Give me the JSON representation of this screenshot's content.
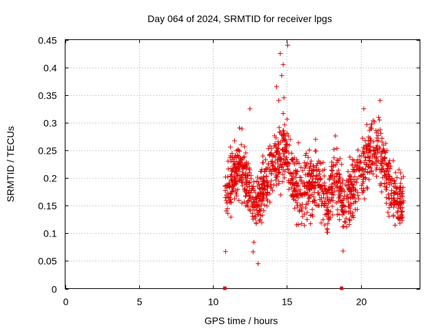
{
  "chart_data": {
    "type": "scatter",
    "title": "Day 064 of 2024, SRMTID for receiver lpgs",
    "xlabel": "GPS time / hours",
    "ylabel": "SRMTID / TECUs",
    "xlim": [
      0,
      24
    ],
    "ylim": [
      0,
      0.45
    ],
    "x_ticks": [
      0,
      5,
      10,
      15,
      20
    ],
    "y_ticks": [
      0,
      0.05,
      0.1,
      0.15,
      0.2,
      0.25,
      0.3,
      0.35,
      0.4,
      0.45
    ],
    "x_tick_labels": [
      "0",
      "5",
      "10",
      "15",
      "20"
    ],
    "y_tick_labels": [
      "0",
      "0.05",
      "0.1",
      "0.15",
      "0.2",
      "0.25",
      "0.3",
      "0.35",
      "0.4",
      "0.45"
    ],
    "grid": true,
    "series": [
      {
        "name": "SRMTID",
        "marker": "plus",
        "color": "#e00000",
        "x_start": 10.8,
        "x_end": 22.9,
        "profile": [
          [
            10.8,
            0.17
          ],
          [
            11.3,
            0.19
          ],
          [
            11.8,
            0.22
          ],
          [
            12.2,
            0.2
          ],
          [
            12.7,
            0.15
          ],
          [
            13.2,
            0.17
          ],
          [
            13.8,
            0.21
          ],
          [
            14.4,
            0.24
          ],
          [
            14.9,
            0.25
          ],
          [
            15.3,
            0.2
          ],
          [
            15.9,
            0.18
          ],
          [
            16.5,
            0.19
          ],
          [
            17.2,
            0.2
          ],
          [
            17.7,
            0.15
          ],
          [
            18.3,
            0.21
          ],
          [
            18.9,
            0.14
          ],
          [
            19.5,
            0.19
          ],
          [
            20.1,
            0.21
          ],
          [
            20.6,
            0.25
          ],
          [
            21.2,
            0.26
          ],
          [
            21.8,
            0.2
          ],
          [
            22.3,
            0.16
          ],
          [
            22.9,
            0.16
          ]
        ],
        "extremes": [
          [
            15.05,
            0.44
          ],
          [
            14.55,
            0.425
          ],
          [
            14.75,
            0.405
          ],
          [
            14.65,
            0.385
          ],
          [
            14.3,
            0.365
          ],
          [
            14.8,
            0.345
          ],
          [
            14.45,
            0.34
          ],
          [
            13.05,
            0.045
          ],
          [
            18.8,
            0.068
          ],
          [
            10.85,
            0.067
          ],
          [
            21.3,
            0.34
          ],
          [
            20.2,
            0.325
          ],
          [
            12.5,
            0.325
          ]
        ],
        "x_axis_markers": [
          10.8,
          18.7
        ],
        "count": 1350
      }
    ]
  }
}
